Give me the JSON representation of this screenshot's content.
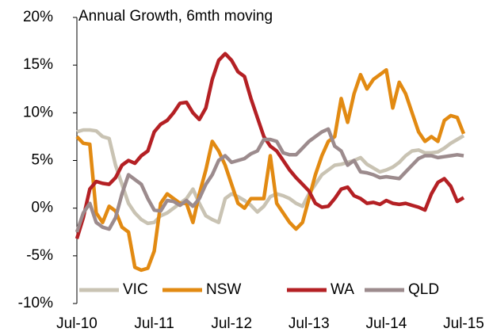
{
  "chart_data": {
    "type": "line",
    "title": "Annual Growth, 6mth moving",
    "categories": [
      "Jul-10",
      null,
      null,
      null,
      null,
      null,
      null,
      null,
      null,
      null,
      null,
      null,
      "Jul-11",
      null,
      null,
      null,
      null,
      null,
      null,
      null,
      null,
      null,
      null,
      null,
      "Jul-12",
      null,
      null,
      null,
      null,
      null,
      null,
      null,
      null,
      null,
      null,
      null,
      "Jul-13",
      null,
      null,
      null,
      null,
      null,
      null,
      null,
      null,
      null,
      null,
      null,
      "Jul-14",
      null,
      null,
      null,
      null,
      null,
      null,
      null,
      null,
      null,
      null,
      null,
      "Jul-15"
    ],
    "series": [
      {
        "name": "VIC",
        "color": "#c9c3b3",
        "values": [
          8.0,
          8.2,
          8.2,
          8.1,
          7.5,
          7.3,
          4.5,
          2.5,
          0.5,
          -0.5,
          -1.2,
          -1.6,
          -1.5,
          -0.8,
          -0.5,
          0,
          0.5,
          1.0,
          2.0,
          0.5,
          -0.8,
          -1.2,
          -1.5,
          1.0,
          1.5,
          1.2,
          0.8,
          0.3,
          -0.4,
          0.2,
          1.2,
          1.5,
          1.3,
          1.0,
          0.5,
          0.2,
          1.5,
          2.5,
          3.5,
          4.0,
          4.5,
          4.6,
          4.8,
          5.0,
          5.3,
          4.6,
          4.2,
          3.8,
          4.0,
          4.3,
          4.8,
          5.5,
          6.0,
          6.1,
          5.8,
          5.8,
          5.9,
          6.3,
          6.8,
          7.2,
          7.6
        ]
      },
      {
        "name": "NSW",
        "color": "#e28a12",
        "values": [
          7.5,
          6.8,
          6.7,
          -0.5,
          -1.5,
          0.2,
          -0.3,
          -2.0,
          -2.5,
          -6.2,
          -6.5,
          -6.3,
          -4.5,
          0.5,
          1.5,
          1.0,
          0.5,
          0.5,
          -1.5,
          1.5,
          4.0,
          7.0,
          6.0,
          4.5,
          2.5,
          0.5,
          0.0,
          1.0,
          1.0,
          1.0,
          5.5,
          0.5,
          -0.5,
          -1.5,
          -2.2,
          -1.5,
          1.0,
          3.5,
          5.5,
          7.0,
          7.5,
          11.5,
          9.0,
          12.0,
          14.0,
          12.5,
          13.5,
          14.0,
          14.5,
          10.5,
          13.2,
          12.0,
          10.0,
          8.0,
          7.0,
          7.5,
          7.0,
          9.2,
          9.7,
          9.5,
          7.8
        ]
      },
      {
        "name": "WA",
        "color": "#b42024",
        "values": [
          -3.2,
          -1.0,
          2.0,
          2.8,
          2.6,
          2.5,
          3.2,
          4.5,
          5.0,
          4.7,
          5.5,
          6.0,
          8.0,
          8.8,
          9.2,
          10.0,
          11.0,
          11.1,
          10.0,
          9.3,
          10.5,
          13.5,
          15.5,
          16.2,
          15.5,
          14.3,
          13.8,
          11.5,
          9.5,
          7.5,
          6.5,
          6.0,
          5.0,
          4.0,
          3.2,
          2.5,
          1.8,
          0.5,
          0.1,
          0.2,
          1.0,
          2.0,
          2.2,
          1.3,
          1.0,
          0.5,
          0.6,
          0.4,
          0.8,
          0.5,
          0.4,
          0.5,
          0.3,
          0.1,
          -0.2,
          1.5,
          2.7,
          3.1,
          2.3,
          0.7,
          1.1
        ]
      },
      {
        "name": "QLD",
        "color": "#9c8b8d",
        "values": [
          -2.5,
          -0.5,
          0.5,
          -1.5,
          -2.0,
          -2.2,
          -1.0,
          1.5,
          3.5,
          3.0,
          2.5,
          1.0,
          -0.2,
          -0.3,
          0.8,
          0.7,
          0.3,
          0.8,
          0.2,
          1.0,
          2.5,
          3.5,
          5.0,
          5.5,
          4.8,
          5.0,
          5.2,
          5.7,
          6.0,
          7.2,
          7.2,
          7.0,
          5.8,
          5.6,
          5.6,
          6.3,
          7.0,
          7.5,
          8.0,
          8.3,
          6.5,
          6.0,
          4.5,
          5.0,
          3.8,
          3.7,
          3.5,
          3.2,
          3.3,
          3.2,
          3.1,
          3.8,
          4.5,
          5.2,
          5.5,
          5.5,
          5.3,
          5.4,
          5.5,
          5.6,
          5.5
        ]
      }
    ],
    "ylim": [
      -10,
      20
    ],
    "yticks": [
      {
        "value": -10,
        "label": "-10%"
      },
      {
        "value": -5,
        "label": "-5%"
      },
      {
        "value": 0,
        "label": "0%"
      },
      {
        "value": 5,
        "label": "5%"
      },
      {
        "value": 10,
        "label": "10%"
      },
      {
        "value": 15,
        "label": "15%"
      },
      {
        "value": 20,
        "label": "20%"
      }
    ],
    "legend": "bottom"
  }
}
